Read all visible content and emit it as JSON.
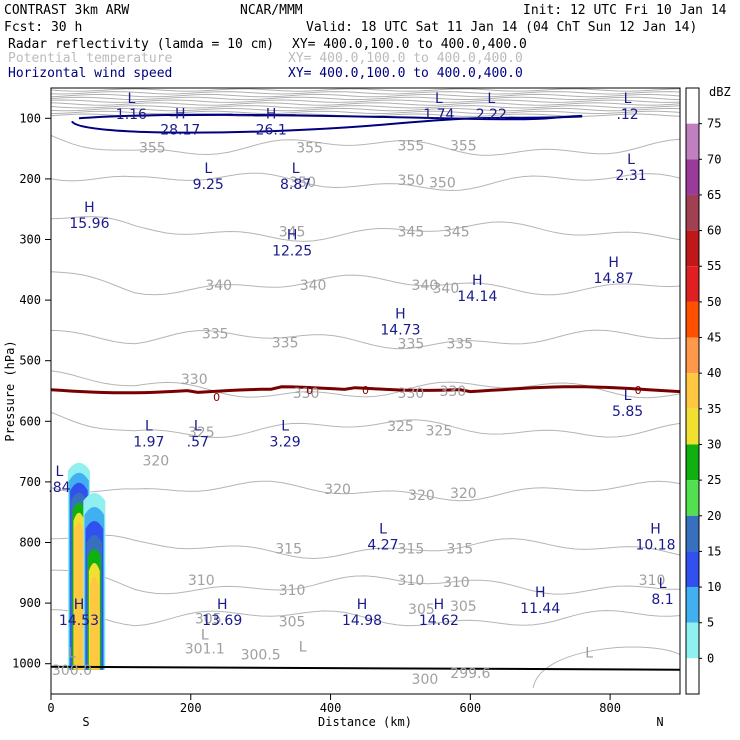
{
  "header": {
    "model": "CONTRAST  3km ARW",
    "center": "NCAR/MMM",
    "init": "Init: 12 UTC Fri 10 Jan 14",
    "fcst": "Fcst:   30 h",
    "valid": "Valid: 18 UTC Sat 11 Jan 14 (04 ChT Sun 12 Jan 14)",
    "fields": [
      {
        "name": "Radar reflectivity (lamda = 10 cm)",
        "xy": "XY= 400.0,100.0 to 400.0,400.0",
        "color": "#000000"
      },
      {
        "name": "Potential temperature",
        "xy": "XY= 400.0,100.0 to 400.0,400.0",
        "color": "#bbbbbb"
      },
      {
        "name": "Horizontal wind speed",
        "xy": "XY= 400.0,100.0 to 400.0,400.0",
        "color": "#000080"
      }
    ]
  },
  "chart_data": {
    "type": "cross-section",
    "xlabel": "Distance (km)",
    "ylabel": "Pressure (hPa)",
    "xlim": [
      0,
      900
    ],
    "ylim": [
      1050,
      50
    ],
    "x_ticks": [
      "0",
      "200",
      "400",
      "600",
      "800"
    ],
    "y_ticks": [
      "100",
      "200",
      "300",
      "400",
      "500",
      "600",
      "700",
      "800",
      "900",
      "1000"
    ],
    "x_end_labels": {
      "left": "S",
      "right": "N"
    },
    "colorbar": {
      "unit": "dBZ",
      "labels": [
        "75",
        "70",
        "65",
        "60",
        "55",
        "50",
        "45",
        "40",
        "35",
        "30",
        "25",
        "20",
        "15",
        "10",
        "5",
        "0"
      ],
      "colors": [
        "#ffffff",
        "#c080c0",
        "#9a3a9a",
        "#a04050",
        "#c01818",
        "#e02020",
        "#ff5000",
        "#ff9848",
        "#ffc840",
        "#f0e030",
        "#10b010",
        "#50e050",
        "#3870c0",
        "#3050f0",
        "#40b0f0",
        "#90f0f0",
        "#ffffff"
      ]
    },
    "theta_contour_labels": [
      {
        "text": "355",
        "x": 145,
        "p": 148
      },
      {
        "text": "355",
        "x": 370,
        "p": 148
      },
      {
        "text": "355",
        "x": 515,
        "p": 145
      },
      {
        "text": "355",
        "x": 590,
        "p": 145
      },
      {
        "text": "350",
        "x": 360,
        "p": 205
      },
      {
        "text": "350",
        "x": 515,
        "p": 202
      },
      {
        "text": "350",
        "x": 560,
        "p": 206
      },
      {
        "text": "345",
        "x": 345,
        "p": 287
      },
      {
        "text": "345",
        "x": 515,
        "p": 287
      },
      {
        "text": "345",
        "x": 580,
        "p": 287
      },
      {
        "text": "340",
        "x": 240,
        "p": 375
      },
      {
        "text": "340",
        "x": 375,
        "p": 375
      },
      {
        "text": "340",
        "x": 535,
        "p": 375
      },
      {
        "text": "340",
        "x": 565,
        "p": 380
      },
      {
        "text": "335",
        "x": 235,
        "p": 455
      },
      {
        "text": "335",
        "x": 335,
        "p": 470
      },
      {
        "text": "335",
        "x": 515,
        "p": 472
      },
      {
        "text": "335",
        "x": 585,
        "p": 472
      },
      {
        "text": "330",
        "x": 205,
        "p": 530
      },
      {
        "text": "330",
        "x": 365,
        "p": 553
      },
      {
        "text": "330",
        "x": 515,
        "p": 553
      },
      {
        "text": "330",
        "x": 575,
        "p": 550
      },
      {
        "text": "325",
        "x": 215,
        "p": 618
      },
      {
        "text": "325",
        "x": 555,
        "p": 615
      },
      {
        "text": "325",
        "x": 500,
        "p": 608
      },
      {
        "text": "320",
        "x": 410,
        "p": 712
      },
      {
        "text": "320",
        "x": 530,
        "p": 722
      },
      {
        "text": "320",
        "x": 590,
        "p": 718
      },
      {
        "text": "320",
        "x": 150,
        "p": 665
      },
      {
        "text": "315",
        "x": 340,
        "p": 810
      },
      {
        "text": "315",
        "x": 515,
        "p": 810
      },
      {
        "text": "315",
        "x": 585,
        "p": 810
      },
      {
        "text": "310",
        "x": 215,
        "p": 862
      },
      {
        "text": "310",
        "x": 345,
        "p": 878
      },
      {
        "text": "310",
        "x": 515,
        "p": 862
      },
      {
        "text": "310",
        "x": 580,
        "p": 865
      },
      {
        "text": "310",
        "x": 860,
        "p": 862
      },
      {
        "text": "305",
        "x": 225,
        "p": 925
      },
      {
        "text": "305",
        "x": 345,
        "p": 930
      },
      {
        "text": "305",
        "x": 530,
        "p": 910
      },
      {
        "text": "305",
        "x": 590,
        "p": 905
      },
      {
        "text": "300",
        "x": 535,
        "p": 1025
      },
      {
        "text": "300.0",
        "x": 30,
        "p": 1010
      },
      {
        "text": "300.5",
        "x": 300,
        "p": 985
      },
      {
        "text": "301.1",
        "x": 220,
        "p": 975
      },
      {
        "text": "299.6",
        "x": 600,
        "p": 1015
      }
    ],
    "wind_extrema": [
      {
        "type": "L",
        "value": "1.16",
        "x": 115,
        "p": 75
      },
      {
        "type": "H",
        "value": "28.17",
        "x": 185,
        "p": 100
      },
      {
        "type": "H",
        "value": "26.1",
        "x": 315,
        "p": 100
      },
      {
        "type": "L",
        "value": "1.74",
        "x": 555,
        "p": 75
      },
      {
        "type": "L",
        "value": "2.22",
        "x": 630,
        "p": 75
      },
      {
        "type": "L",
        "value": ".12",
        "x": 825,
        "p": 75
      },
      {
        "type": "L",
        "value": "9.25",
        "x": 225,
        "p": 190
      },
      {
        "type": "L",
        "value": "8.87",
        "x": 350,
        "p": 190
      },
      {
        "type": "L",
        "value": "2.31",
        "x": 830,
        "p": 175
      },
      {
        "type": "H",
        "value": "15.96",
        "x": 55,
        "p": 255
      },
      {
        "type": "H",
        "value": "12.25",
        "x": 345,
        "p": 300
      },
      {
        "type": "H",
        "value": "14.87",
        "x": 805,
        "p": 345
      },
      {
        "type": "H",
        "value": "14.14",
        "x": 610,
        "p": 375
      },
      {
        "type": "H",
        "value": "14.73",
        "x": 500,
        "p": 430
      },
      {
        "type": "L",
        "value": "5.85",
        "x": 825,
        "p": 565
      },
      {
        "type": "L",
        "value": "1.97",
        "x": 140,
        "p": 615
      },
      {
        "type": "L",
        "value": ".57",
        "x": 210,
        "p": 615
      },
      {
        "type": "L",
        "value": "3.29",
        "x": 335,
        "p": 615
      },
      {
        "type": "L",
        "value": ".84",
        "x": 12,
        "p": 690
      },
      {
        "type": "L",
        "value": "4.27",
        "x": 475,
        "p": 785
      },
      {
        "type": "H",
        "value": "10.18",
        "x": 865,
        "p": 785
      },
      {
        "type": "L",
        "value": "8.1",
        "x": 875,
        "p": 875
      },
      {
        "type": "H",
        "value": "14.53",
        "x": 40,
        "p": 910
      },
      {
        "type": "H",
        "value": "13.69",
        "x": 245,
        "p": 910
      },
      {
        "type": "H",
        "value": "14.98",
        "x": 445,
        "p": 910
      },
      {
        "type": "H",
        "value": "14.62",
        "x": 555,
        "p": 910
      },
      {
        "type": "H",
        "value": "11.44",
        "x": 700,
        "p": 890
      }
    ],
    "grey_extrema": [
      {
        "type": "L",
        "value": "",
        "x": 220,
        "p": 960
      },
      {
        "type": "L",
        "value": "",
        "x": 360,
        "p": 980
      },
      {
        "type": "L",
        "value": "",
        "x": 770,
        "p": 990
      },
      {
        "type": "L",
        "value": "",
        "x": 30,
        "p": 990
      }
    ],
    "zero_line_labels": [
      {
        "text": "0",
        "x": 237,
        "p": 560
      },
      {
        "text": "0",
        "x": 370,
        "p": 548
      },
      {
        "text": "0",
        "x": 450,
        "p": 548
      },
      {
        "text": "0",
        "x": 840,
        "p": 548
      }
    ],
    "reflectivity_cells": [
      {
        "x_center": 40,
        "p_top": 665,
        "p_bottom": 1010
      },
      {
        "x_center": 62,
        "p_top": 715,
        "p_bottom": 1010
      }
    ]
  }
}
